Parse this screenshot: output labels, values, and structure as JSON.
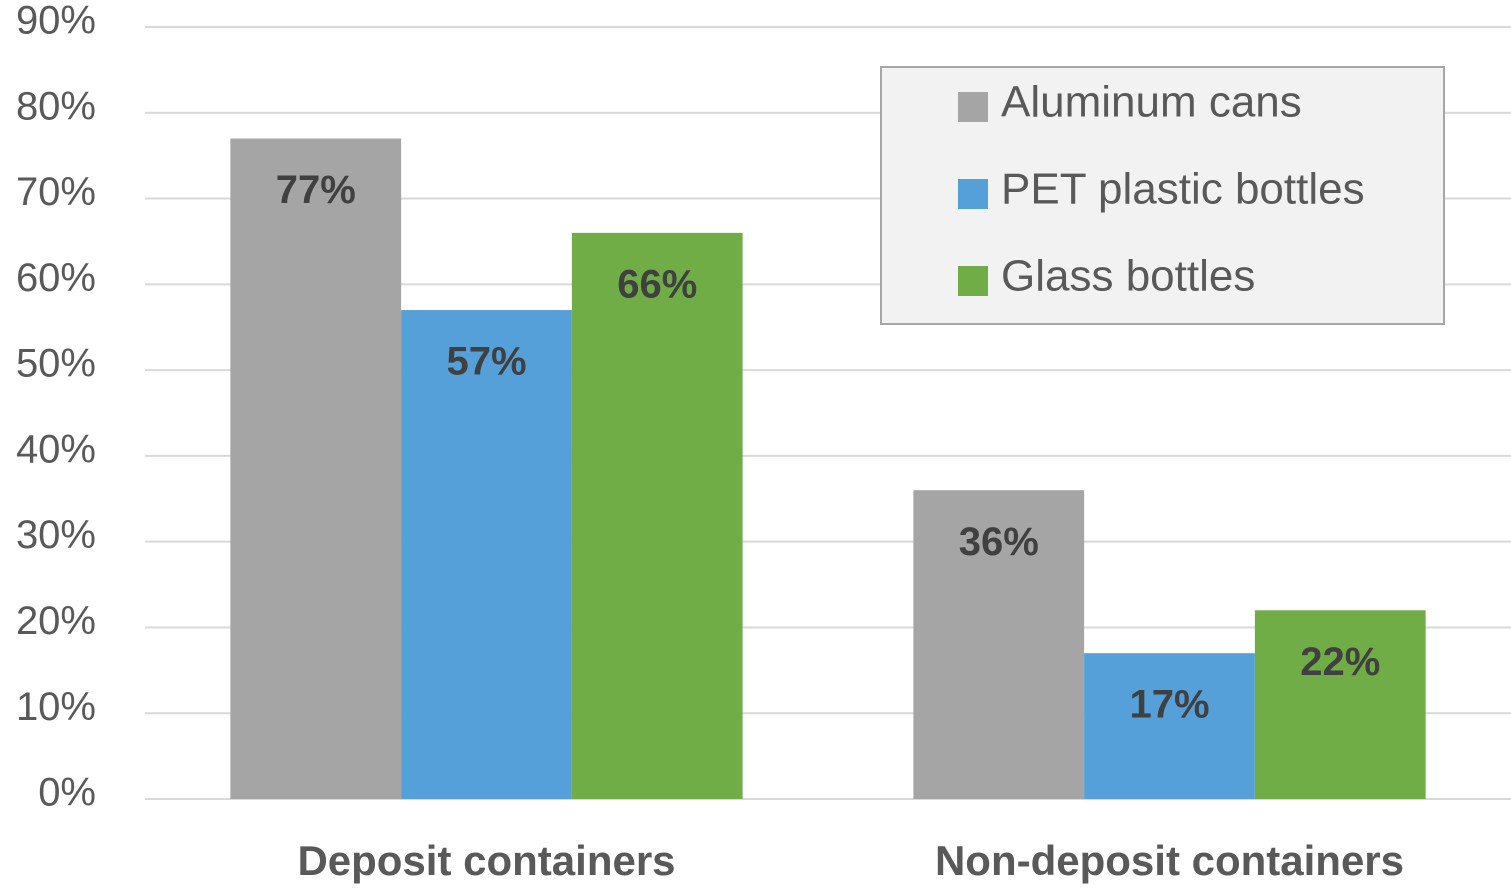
{
  "chart_data": {
    "type": "bar",
    "categories": [
      "Deposit containers",
      "Non-deposit containers"
    ],
    "series": [
      {
        "name": "Aluminum cans",
        "color": "#a5a5a5",
        "values": [
          77,
          36
        ],
        "value_labels": [
          "77%",
          "36%"
        ]
      },
      {
        "name": "PET plastic bottles",
        "color": "#56a0da",
        "values": [
          57,
          17
        ],
        "value_labels": [
          "57%",
          "17%"
        ]
      },
      {
        "name": "Glass bottles",
        "color": "#70ad47",
        "values": [
          66,
          22
        ],
        "value_labels": [
          "66%",
          "22%"
        ]
      }
    ],
    "ylim": [
      0,
      90
    ],
    "yticks": [
      {
        "value": 0,
        "label": "0%"
      },
      {
        "value": 10,
        "label": "10%"
      },
      {
        "value": 20,
        "label": "20%"
      },
      {
        "value": 30,
        "label": "30%"
      },
      {
        "value": 40,
        "label": "40%"
      },
      {
        "value": 50,
        "label": "50%"
      },
      {
        "value": 60,
        "label": "60%"
      },
      {
        "value": 70,
        "label": "70%"
      },
      {
        "value": 80,
        "label": "80%"
      },
      {
        "value": 90,
        "label": "90%"
      }
    ],
    "grid": true,
    "legend": "upper right"
  }
}
